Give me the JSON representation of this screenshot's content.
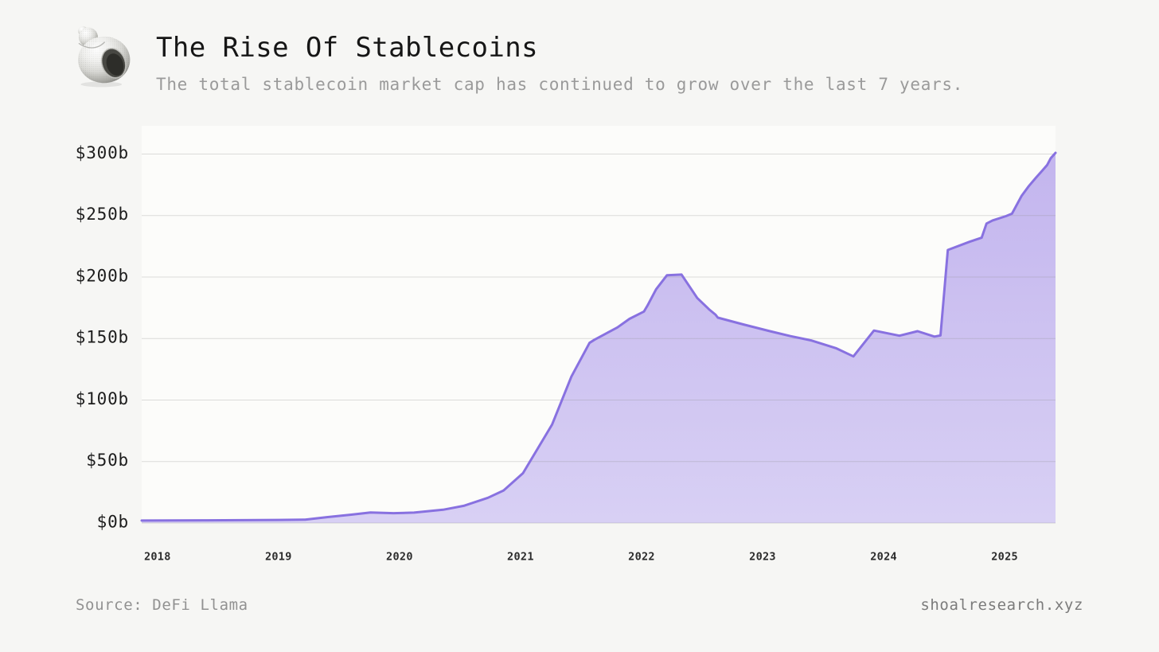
{
  "header": {
    "title": "The Rise Of Stablecoins",
    "subtitle": "The total stablecoin market cap has continued to grow over the last 7 years."
  },
  "footer": {
    "source": "Source: DeFi Llama",
    "website": "shoalresearch.xyz"
  },
  "logo": {
    "icon": "shell-icon"
  },
  "chart_data": {
    "type": "area",
    "title": "The Rise Of Stablecoins",
    "xlabel": "",
    "ylabel": "Total stablecoin market cap",
    "unit": "$ billions",
    "grid": true,
    "legend": false,
    "xlim": [
      2017.87,
      2025.42
    ],
    "ylim": [
      0,
      300
    ],
    "x_ticks": [
      {
        "label": "2018",
        "year": 2018
      },
      {
        "label": "2019",
        "year": 2019
      },
      {
        "label": "2020",
        "year": 2020
      },
      {
        "label": "2021",
        "year": 2021
      },
      {
        "label": "2022",
        "year": 2022
      },
      {
        "label": "2023",
        "year": 2023
      },
      {
        "label": "2024",
        "year": 2024
      },
      {
        "label": "2025",
        "year": 2025
      }
    ],
    "y_ticks": [
      {
        "label": "$0b",
        "value": 0
      },
      {
        "label": "$50b",
        "value": 50
      },
      {
        "label": "$100b",
        "value": 100
      },
      {
        "label": "$150b",
        "value": 150
      },
      {
        "label": "$200b",
        "value": 200
      },
      {
        "label": "$250b",
        "value": 250
      },
      {
        "label": "$300b",
        "value": 300
      }
    ],
    "series": [
      {
        "name": "Total stablecoin market cap ($b)",
        "points": [
          [
            2017.87,
            2.0
          ],
          [
            2018.4,
            2.2
          ],
          [
            2019.0,
            2.5
          ],
          [
            2019.22,
            2.8
          ],
          [
            2019.4,
            4.8
          ],
          [
            2019.6,
            6.8
          ],
          [
            2019.76,
            8.6
          ],
          [
            2019.95,
            8.0
          ],
          [
            2020.12,
            8.5
          ],
          [
            2020.36,
            10.8
          ],
          [
            2020.53,
            14.0
          ],
          [
            2020.73,
            20.5
          ],
          [
            2020.86,
            26.5
          ],
          [
            2021.02,
            40.5
          ],
          [
            2021.26,
            80.0
          ],
          [
            2021.42,
            119.0
          ],
          [
            2021.57,
            146.5
          ],
          [
            2021.61,
            149.0
          ],
          [
            2021.8,
            159.0
          ],
          [
            2021.9,
            166.0
          ],
          [
            2022.02,
            172.0
          ],
          [
            2022.05,
            177.0
          ],
          [
            2022.12,
            190.0
          ],
          [
            2022.21,
            201.5
          ],
          [
            2022.33,
            202.0
          ],
          [
            2022.46,
            183.0
          ],
          [
            2022.56,
            173.5
          ],
          [
            2022.61,
            169.5
          ],
          [
            2022.63,
            167.0
          ],
          [
            2022.84,
            161.5
          ],
          [
            2023.06,
            156.0
          ],
          [
            2023.23,
            152.0
          ],
          [
            2023.4,
            148.5
          ],
          [
            2023.61,
            142.0
          ],
          [
            2023.75,
            135.5
          ],
          [
            2023.92,
            156.5
          ],
          [
            2024.13,
            152.3
          ],
          [
            2024.28,
            156.0
          ],
          [
            2024.42,
            151.6
          ],
          [
            2024.47,
            152.5
          ],
          [
            2024.53,
            222.0
          ],
          [
            2024.71,
            228.7
          ],
          [
            2024.81,
            232.0
          ],
          [
            2024.85,
            243.5
          ],
          [
            2024.9,
            246.0
          ],
          [
            2025.01,
            249.5
          ],
          [
            2025.06,
            251.5
          ],
          [
            2025.14,
            266.0
          ],
          [
            2025.2,
            274.0
          ],
          [
            2025.26,
            281.0
          ],
          [
            2025.31,
            286.5
          ],
          [
            2025.35,
            291.0
          ],
          [
            2025.38,
            296.5
          ],
          [
            2025.42,
            301.0
          ]
        ]
      }
    ],
    "colors": {
      "line": "#8871e0",
      "fill_top": "#c3b5ee",
      "fill_bottom": "#d8d0f4",
      "gridline": "#8d8d8d",
      "plot_background": "#fcfcfa",
      "page_background": "#f6f6f4"
    }
  }
}
